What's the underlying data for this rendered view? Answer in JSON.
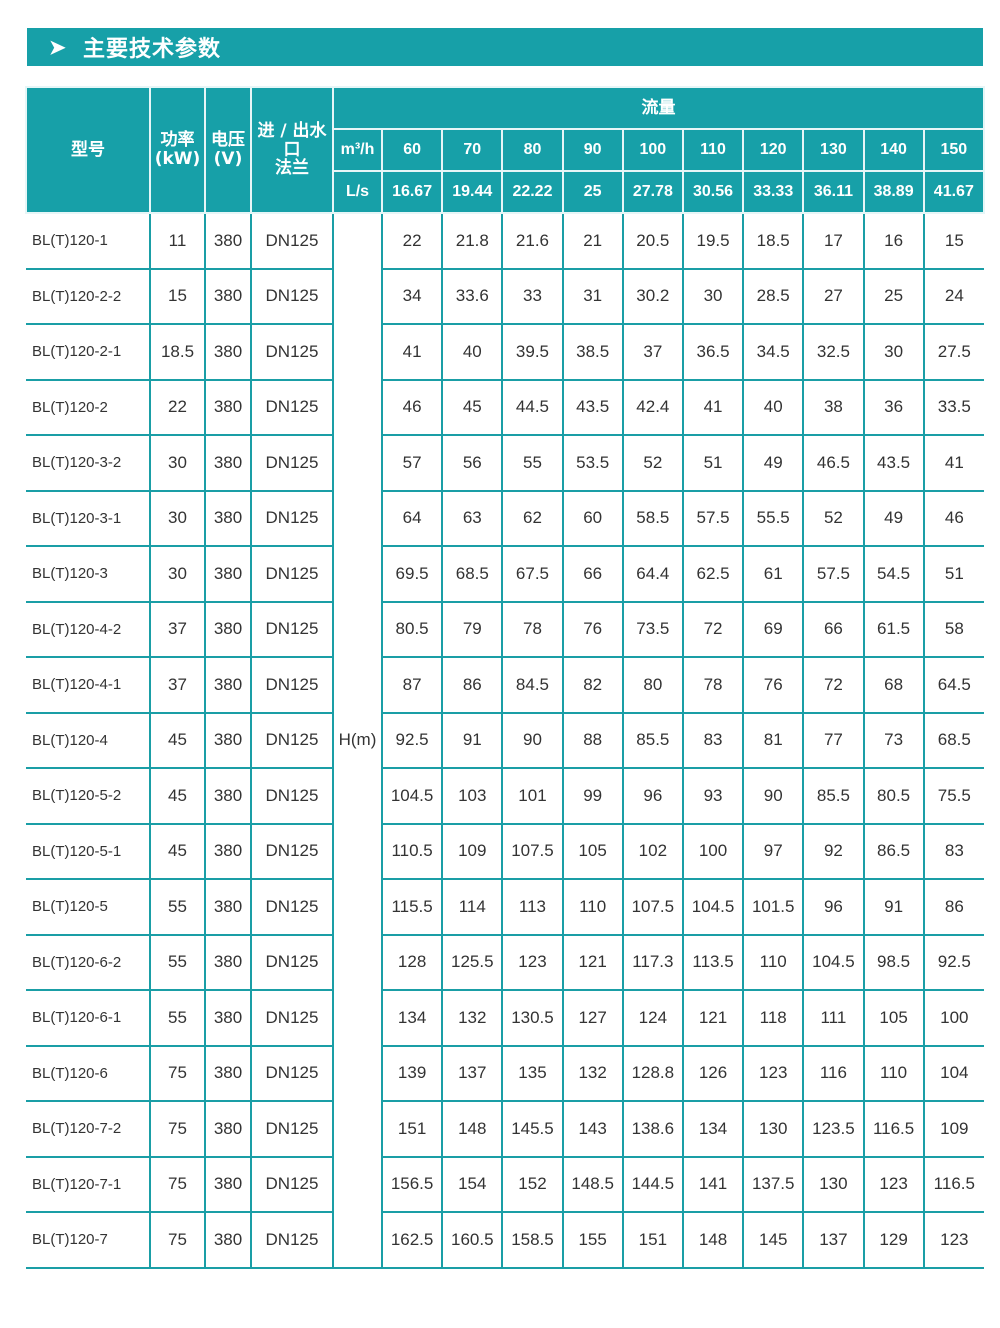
{
  "title": {
    "icon": "chevron-right-icon",
    "text": "主要技术参数"
  },
  "accent_color": "#17a0a8",
  "header": {
    "model": "型号",
    "power": "功率\n(kW)",
    "voltage": "电压\n(V)",
    "flange": "进 / 出水\n口\n法兰",
    "flow": "流量",
    "unit_m3h": "m³/h",
    "unit_ls": "L/s",
    "head_unit": "H(m)",
    "flow_m3h": [
      "60",
      "70",
      "80",
      "90",
      "100",
      "110",
      "120",
      "130",
      "140",
      "150"
    ],
    "flow_ls": [
      "16.67",
      "19.44",
      "22.22",
      "25",
      "27.78",
      "30.56",
      "33.33",
      "36.11",
      "38.89",
      "41.67"
    ]
  },
  "rows": [
    {
      "model": "BL(T)120-1",
      "power": "11",
      "voltage": "380",
      "flange": "DN125",
      "head": [
        "22",
        "21.8",
        "21.6",
        "21",
        "20.5",
        "19.5",
        "18.5",
        "17",
        "16",
        "15"
      ]
    },
    {
      "model": "BL(T)120-2-2",
      "power": "15",
      "voltage": "380",
      "flange": "DN125",
      "head": [
        "34",
        "33.6",
        "33",
        "31",
        "30.2",
        "30",
        "28.5",
        "27",
        "25",
        "24"
      ]
    },
    {
      "model": "BL(T)120-2-1",
      "power": "18.5",
      "voltage": "380",
      "flange": "DN125",
      "head": [
        "41",
        "40",
        "39.5",
        "38.5",
        "37",
        "36.5",
        "34.5",
        "32.5",
        "30",
        "27.5"
      ]
    },
    {
      "model": "BL(T)120-2",
      "power": "22",
      "voltage": "380",
      "flange": "DN125",
      "head": [
        "46",
        "45",
        "44.5",
        "43.5",
        "42.4",
        "41",
        "40",
        "38",
        "36",
        "33.5"
      ]
    },
    {
      "model": "BL(T)120-3-2",
      "power": "30",
      "voltage": "380",
      "flange": "DN125",
      "head": [
        "57",
        "56",
        "55",
        "53.5",
        "52",
        "51",
        "49",
        "46.5",
        "43.5",
        "41"
      ]
    },
    {
      "model": "BL(T)120-3-1",
      "power": "30",
      "voltage": "380",
      "flange": "DN125",
      "head": [
        "64",
        "63",
        "62",
        "60",
        "58.5",
        "57.5",
        "55.5",
        "52",
        "49",
        "46"
      ]
    },
    {
      "model": "BL(T)120-3",
      "power": "30",
      "voltage": "380",
      "flange": "DN125",
      "head": [
        "69.5",
        "68.5",
        "67.5",
        "66",
        "64.4",
        "62.5",
        "61",
        "57.5",
        "54.5",
        "51"
      ]
    },
    {
      "model": "BL(T)120-4-2",
      "power": "37",
      "voltage": "380",
      "flange": "DN125",
      "head": [
        "80.5",
        "79",
        "78",
        "76",
        "73.5",
        "72",
        "69",
        "66",
        "61.5",
        "58"
      ]
    },
    {
      "model": "BL(T)120-4-1",
      "power": "37",
      "voltage": "380",
      "flange": "DN125",
      "head": [
        "87",
        "86",
        "84.5",
        "82",
        "80",
        "78",
        "76",
        "72",
        "68",
        "64.5"
      ]
    },
    {
      "model": "BL(T)120-4",
      "power": "45",
      "voltage": "380",
      "flange": "DN125",
      "head": [
        "92.5",
        "91",
        "90",
        "88",
        "85.5",
        "83",
        "81",
        "77",
        "73",
        "68.5"
      ]
    },
    {
      "model": "BL(T)120-5-2",
      "power": "45",
      "voltage": "380",
      "flange": "DN125",
      "head": [
        "104.5",
        "103",
        "101",
        "99",
        "96",
        "93",
        "90",
        "85.5",
        "80.5",
        "75.5"
      ]
    },
    {
      "model": "BL(T)120-5-1",
      "power": "45",
      "voltage": "380",
      "flange": "DN125",
      "head": [
        "110.5",
        "109",
        "107.5",
        "105",
        "102",
        "100",
        "97",
        "92",
        "86.5",
        "83"
      ]
    },
    {
      "model": "BL(T)120-5",
      "power": "55",
      "voltage": "380",
      "flange": "DN125",
      "head": [
        "115.5",
        "114",
        "113",
        "110",
        "107.5",
        "104.5",
        "101.5",
        "96",
        "91",
        "86"
      ]
    },
    {
      "model": "BL(T)120-6-2",
      "power": "55",
      "voltage": "380",
      "flange": "DN125",
      "head": [
        "128",
        "125.5",
        "123",
        "121",
        "117.3",
        "113.5",
        "110",
        "104.5",
        "98.5",
        "92.5"
      ]
    },
    {
      "model": "BL(T)120-6-1",
      "power": "55",
      "voltage": "380",
      "flange": "DN125",
      "head": [
        "134",
        "132",
        "130.5",
        "127",
        "124",
        "121",
        "118",
        "111",
        "105",
        "100"
      ]
    },
    {
      "model": "BL(T)120-6",
      "power": "75",
      "voltage": "380",
      "flange": "DN125",
      "head": [
        "139",
        "137",
        "135",
        "132",
        "128.8",
        "126",
        "123",
        "116",
        "110",
        "104"
      ]
    },
    {
      "model": "BL(T)120-7-2",
      "power": "75",
      "voltage": "380",
      "flange": "DN125",
      "head": [
        "151",
        "148",
        "145.5",
        "143",
        "138.6",
        "134",
        "130",
        "123.5",
        "116.5",
        "109"
      ]
    },
    {
      "model": "BL(T)120-7-1",
      "power": "75",
      "voltage": "380",
      "flange": "DN125",
      "head": [
        "156.5",
        "154",
        "152",
        "148.5",
        "144.5",
        "141",
        "137.5",
        "130",
        "123",
        "116.5"
      ]
    },
    {
      "model": "BL(T)120-7",
      "power": "75",
      "voltage": "380",
      "flange": "DN125",
      "head": [
        "162.5",
        "160.5",
        "158.5",
        "155",
        "151",
        "148",
        "145",
        "137",
        "129",
        "123"
      ]
    }
  ]
}
